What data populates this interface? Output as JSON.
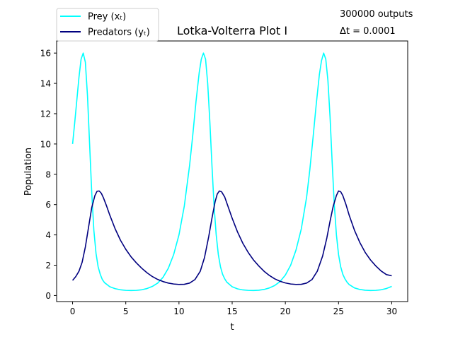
{
  "chart_data": {
    "type": "line",
    "title": "Lotka-Volterra Plot I",
    "xlabel": "t",
    "ylabel": "Population",
    "xlim": [
      -1.5,
      31.5
    ],
    "ylim": [
      -0.4,
      16.8
    ],
    "xticks": [
      0,
      5,
      10,
      15,
      20,
      25,
      30
    ],
    "yticks": [
      0,
      2,
      4,
      6,
      8,
      10,
      12,
      14,
      16
    ],
    "grid": false,
    "legend_position": "top-left (outside above axes)",
    "annotations": [
      "300000 outputs",
      "Δt = 0.0001"
    ],
    "series": [
      {
        "name": "Prey (xₜ)",
        "color": "#00ffff",
        "x": [
          0,
          0.2,
          0.4,
          0.6,
          0.8,
          1.0,
          1.2,
          1.4,
          1.6,
          1.8,
          2.0,
          2.2,
          2.4,
          2.6,
          2.8,
          3.0,
          3.5,
          4.0,
          4.5,
          5.0,
          5.5,
          6.0,
          6.5,
          7.0,
          7.5,
          8.0,
          8.5,
          9.0,
          9.5,
          10.0,
          10.5,
          11.0,
          11.3,
          11.6,
          11.9,
          12.1,
          12.3,
          12.5,
          12.7,
          12.9,
          13.1,
          13.3,
          13.5,
          13.7,
          13.9,
          14.1,
          14.3,
          14.5,
          15.0,
          15.5,
          16.0,
          16.5,
          17.0,
          17.5,
          18.0,
          18.5,
          19.0,
          19.5,
          20.0,
          20.5,
          21.0,
          21.5,
          22.0,
          22.3,
          22.6,
          22.9,
          23.2,
          23.4,
          23.6,
          23.8,
          24.0,
          24.2,
          24.4,
          24.6,
          24.8,
          25.0,
          25.2,
          25.4,
          25.6,
          25.8,
          26.0,
          26.5,
          27.0,
          27.5,
          28.0,
          28.5,
          29.0,
          29.5,
          30.0
        ],
        "y": [
          10.0,
          11.4,
          12.9,
          14.4,
          15.6,
          16.0,
          15.4,
          13.2,
          10.0,
          6.8,
          4.3,
          2.8,
          1.9,
          1.4,
          1.05,
          0.85,
          0.58,
          0.45,
          0.38,
          0.34,
          0.33,
          0.34,
          0.38,
          0.46,
          0.6,
          0.82,
          1.2,
          1.8,
          2.7,
          4.0,
          5.9,
          8.6,
          10.6,
          12.8,
          14.7,
          15.6,
          16.0,
          15.6,
          14.0,
          11.5,
          8.6,
          5.9,
          4.0,
          2.7,
          1.9,
          1.4,
          1.1,
          0.88,
          0.58,
          0.44,
          0.37,
          0.34,
          0.33,
          0.35,
          0.4,
          0.5,
          0.66,
          0.92,
          1.35,
          2.0,
          3.0,
          4.4,
          6.5,
          8.3,
          10.4,
          12.6,
          14.6,
          15.5,
          16.0,
          15.6,
          14.2,
          11.8,
          8.8,
          6.0,
          4.0,
          2.7,
          1.9,
          1.4,
          1.1,
          0.88,
          0.72,
          0.5,
          0.4,
          0.35,
          0.33,
          0.34,
          0.38,
          0.46,
          0.6
        ]
      },
      {
        "name": "Predators (yₜ)",
        "color": "#00007f",
        "x": [
          0,
          0.3,
          0.6,
          0.9,
          1.2,
          1.5,
          1.8,
          2.1,
          2.3,
          2.5,
          2.7,
          2.9,
          3.2,
          3.5,
          4.0,
          4.5,
          5.0,
          5.5,
          6.0,
          6.5,
          7.0,
          7.5,
          8.0,
          8.5,
          9.0,
          9.5,
          10.0,
          10.5,
          11.0,
          11.5,
          12.0,
          12.4,
          12.8,
          13.1,
          13.4,
          13.6,
          13.8,
          14.0,
          14.3,
          14.6,
          15.0,
          15.5,
          16.0,
          16.5,
          17.0,
          17.5,
          18.0,
          18.5,
          19.0,
          19.5,
          20.0,
          20.5,
          21.0,
          21.5,
          22.0,
          22.5,
          23.0,
          23.5,
          23.9,
          24.2,
          24.5,
          24.8,
          25.0,
          25.2,
          25.4,
          25.7,
          26.0,
          26.5,
          27.0,
          27.5,
          28.0,
          28.5,
          29.0,
          29.5,
          30.0
        ],
        "y": [
          1.0,
          1.25,
          1.6,
          2.2,
          3.2,
          4.5,
          5.8,
          6.6,
          6.88,
          6.9,
          6.75,
          6.45,
          5.9,
          5.3,
          4.4,
          3.65,
          3.05,
          2.55,
          2.15,
          1.8,
          1.5,
          1.25,
          1.06,
          0.92,
          0.82,
          0.76,
          0.73,
          0.74,
          0.82,
          1.05,
          1.6,
          2.5,
          3.9,
          5.1,
          6.2,
          6.7,
          6.9,
          6.85,
          6.5,
          5.9,
          5.1,
          4.2,
          3.45,
          2.85,
          2.35,
          1.95,
          1.6,
          1.32,
          1.1,
          0.94,
          0.83,
          0.76,
          0.73,
          0.74,
          0.82,
          1.05,
          1.6,
          2.6,
          3.8,
          4.9,
          5.9,
          6.6,
          6.9,
          6.85,
          6.6,
          6.0,
          5.3,
          4.3,
          3.5,
          2.85,
          2.35,
          1.95,
          1.62,
          1.38,
          1.3
        ]
      }
    ]
  }
}
